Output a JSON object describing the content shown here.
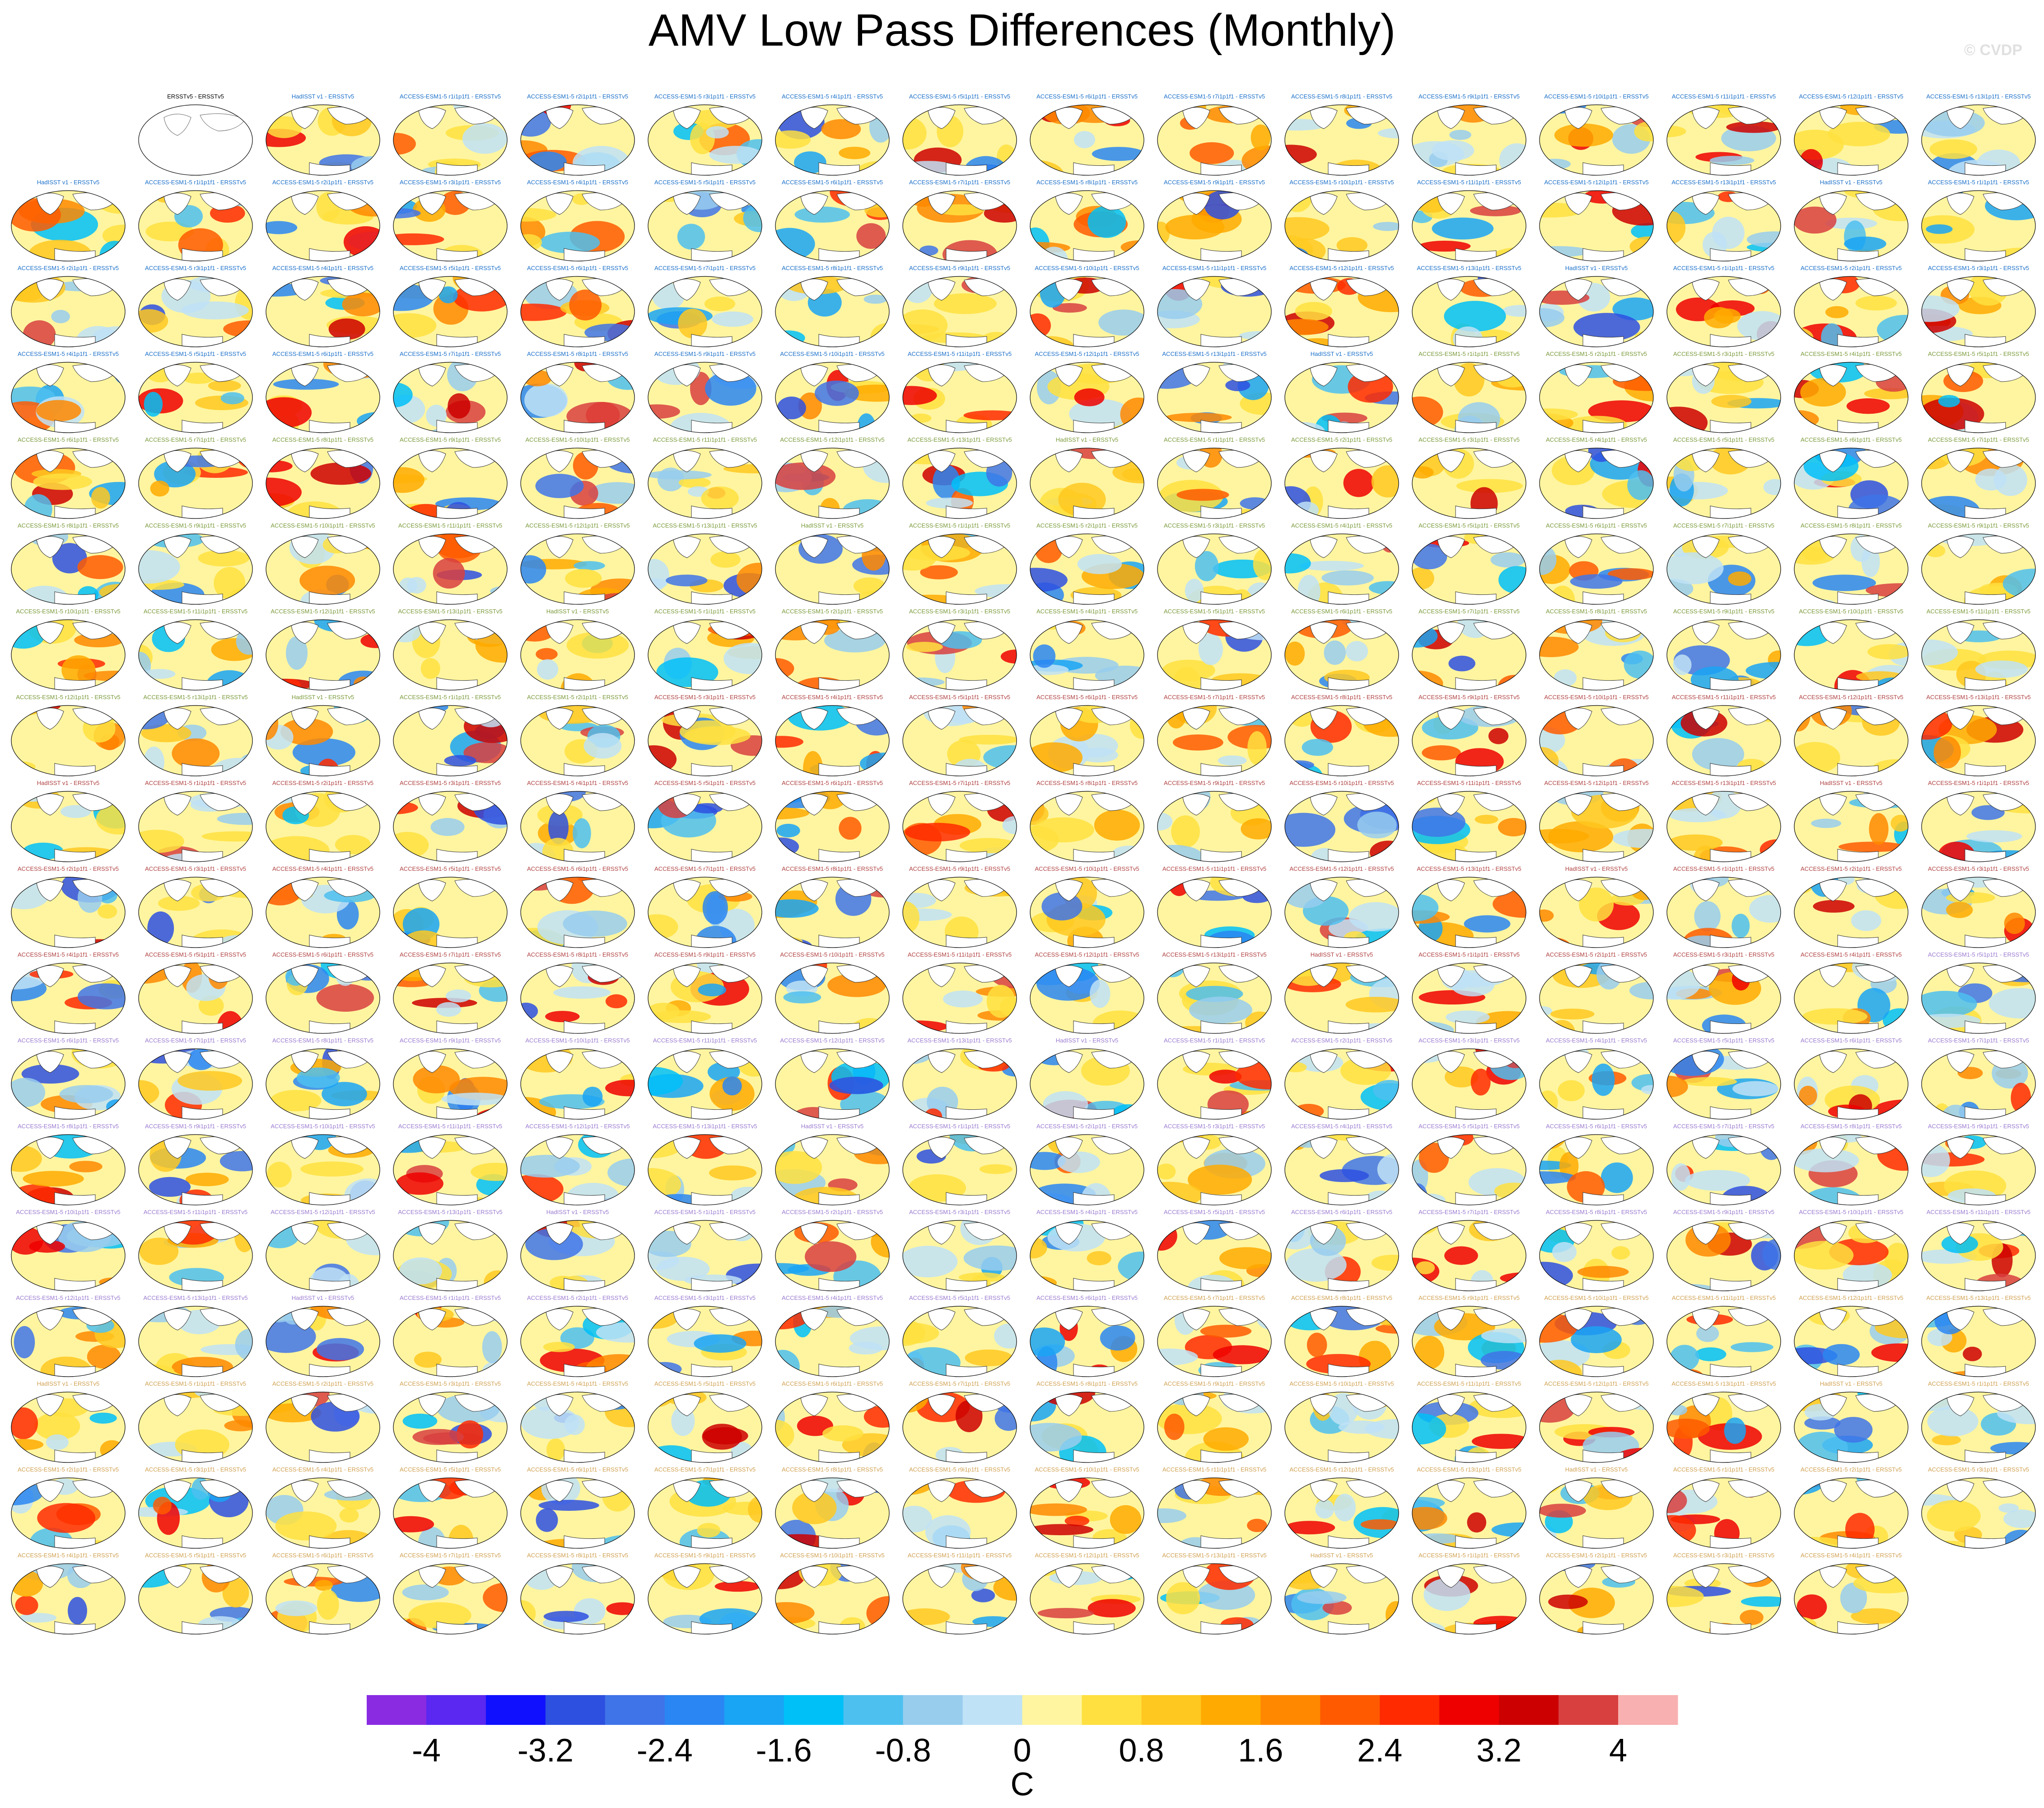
{
  "title": "AMV Low Pass Differences (Monthly)",
  "watermark": "© CVDP",
  "chart_data": {
    "type": "heatmap",
    "title": "AMV Low Pass Differences (Monthly)",
    "layout": {
      "rows": 18,
      "columns": 16,
      "panel_count": 286,
      "first_row_empty_slots": 1
    },
    "reference_panel_label": "ERSSTv5 - ERSSTv5",
    "panel_labels": [
      "HadISST v1 - ERSSTv5",
      "ACCESS-ESM1-5 r1i1p1f1 - ERSSTv5",
      "ACCESS-ESM1-5 r2i1p1f1 - ERSSTv5",
      "ACCESS-ESM1-5 r3i1p1f1 - ERSSTv5",
      "ACCESS-ESM1-5 r4i1p1f1 - ERSSTv5",
      "ACCESS-ESM1-5 r5i1p1f1 - ERSSTv5",
      "ACCESS-ESM1-5 r6i1p1f1 - ERSSTv5",
      "ACCESS-ESM1-5 r7i1p1f1 - ERSSTv5",
      "ACCESS-ESM1-5 r8i1p1f1 - ERSSTv5",
      "ACCESS-ESM1-5 r9i1p1f1 - ERSSTv5",
      "ACCESS-ESM1-5 r10i1p1f1 - ERSSTv5",
      "ACCESS-ESM1-5 r11i1p1f1 - ERSSTv5",
      "ACCESS-ESM1-5 r12i1p1f1 - ERSSTv5",
      "ACCESS-ESM1-5 r13i1p1f1 - ERSSTv5"
    ],
    "label_colors": [
      "#1a6fc9",
      "#7a9a3a",
      "#b04040",
      "#9a7ad0",
      "#d0a050"
    ],
    "colorbar": {
      "colors": [
        "#8a2be2",
        "#5a28f0",
        "#1010ff",
        "#2e50e0",
        "#3f74e8",
        "#2a86f2",
        "#1aa4f4",
        "#00c0f8",
        "#4ec0f0",
        "#98cdee",
        "#bfe2f6",
        "#fff5a0",
        "#ffe040",
        "#ffc820",
        "#ffaa00",
        "#ff8800",
        "#ff5a00",
        "#ff2a00",
        "#ee0000",
        "#cc0000",
        "#d84040",
        "#f8b0b0"
      ],
      "tick_labels": [
        "-4",
        "-3.2",
        "-2.4",
        "-1.6",
        "-0.8",
        "0",
        "0.8",
        "1.6",
        "2.4",
        "3.2",
        "4"
      ],
      "unit": "C"
    }
  }
}
